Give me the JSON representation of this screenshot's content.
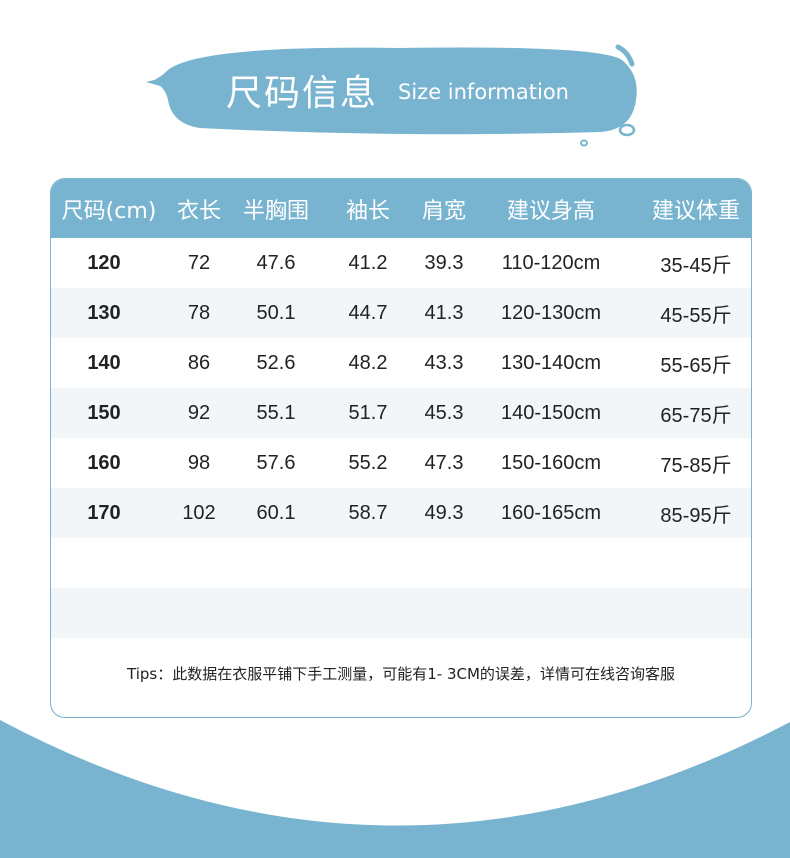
{
  "banner": {
    "title": "尺码信息",
    "subtitle": "Size information"
  },
  "colors": {
    "accent": "#78b4cf",
    "row_stripe": "#f2f6f9",
    "text": "#222222"
  },
  "table": {
    "headers": [
      "尺码(cm)",
      "衣长",
      "半胸围",
      "袖长",
      "肩宽",
      "建议身高",
      "建议体重"
    ],
    "rows": [
      [
        "120",
        "72",
        "47.6",
        "41.2",
        "39.3",
        "110-120cm",
        "35-45斤"
      ],
      [
        "130",
        "78",
        "50.1",
        "44.7",
        "41.3",
        "120-130cm",
        "45-55斤"
      ],
      [
        "140",
        "86",
        "52.6",
        "48.2",
        "43.3",
        "130-140cm",
        "55-65斤"
      ],
      [
        "150",
        "92",
        "55.1",
        "51.7",
        "45.3",
        "140-150cm",
        "65-75斤"
      ],
      [
        "160",
        "98",
        "57.6",
        "55.2",
        "47.3",
        "150-160cm",
        "75-85斤"
      ],
      [
        "170",
        "102",
        "60.1",
        "58.7",
        "49.3",
        "160-165cm",
        "85-95斤"
      ]
    ]
  },
  "tips": "Tips：此数据在衣服平铺下手工测量，可能有1- 3CM的误差，详情可在线咨询客服"
}
